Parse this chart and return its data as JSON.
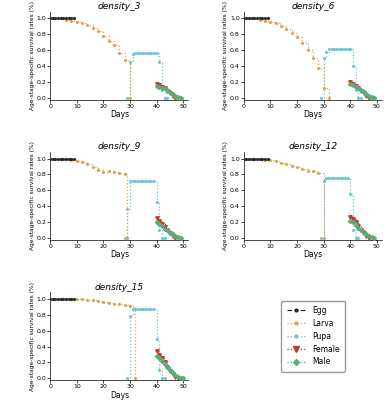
{
  "panels": [
    {
      "title": "density_3",
      "egg": [
        [
          0,
          1,
          2,
          3,
          4,
          5,
          6,
          7,
          8,
          9
        ],
        [
          1.0,
          1.0,
          1.0,
          1.0,
          1.0,
          1.0,
          1.0,
          1.0,
          1.0,
          1.0
        ]
      ],
      "larva": [
        [
          0,
          2,
          4,
          6,
          8,
          10,
          12,
          14,
          16,
          18,
          20,
          22,
          24,
          26,
          28,
          30
        ],
        [
          1.0,
          1.0,
          1.0,
          0.98,
          0.97,
          0.96,
          0.94,
          0.92,
          0.88,
          0.84,
          0.78,
          0.72,
          0.66,
          0.57,
          0.48,
          0.0
        ]
      ],
      "pupa": [
        [
          29,
          30,
          31,
          32,
          33,
          34,
          35,
          36,
          37,
          38,
          39,
          40,
          41,
          42,
          43,
          44
        ],
        [
          0.0,
          0.45,
          0.55,
          0.57,
          0.57,
          0.57,
          0.57,
          0.57,
          0.57,
          0.57,
          0.57,
          0.57,
          0.45,
          0.1,
          0.0,
          0.0
        ]
      ],
      "female": [
        [
          40,
          41,
          42,
          43,
          44,
          45,
          46,
          47
        ],
        [
          0.18,
          0.16,
          0.14,
          0.12,
          0.09,
          0.06,
          0.03,
          0.0
        ]
      ],
      "male": [
        [
          40,
          41,
          42,
          43,
          44,
          45,
          46,
          47,
          48,
          49
        ],
        [
          0.15,
          0.14,
          0.13,
          0.12,
          0.1,
          0.08,
          0.05,
          0.03,
          0.01,
          0.0
        ]
      ]
    },
    {
      "title": "density_6",
      "egg": [
        [
          0,
          1,
          2,
          3,
          4,
          5,
          6,
          7,
          8,
          9
        ],
        [
          1.0,
          1.0,
          1.0,
          1.0,
          1.0,
          1.0,
          1.0,
          1.0,
          1.0,
          1.0
        ]
      ],
      "larva": [
        [
          0,
          2,
          4,
          6,
          8,
          10,
          12,
          14,
          16,
          18,
          20,
          22,
          24,
          26,
          28,
          30,
          32
        ],
        [
          1.0,
          1.0,
          1.0,
          0.98,
          0.97,
          0.96,
          0.94,
          0.91,
          0.87,
          0.82,
          0.76,
          0.69,
          0.6,
          0.5,
          0.38,
          0.12,
          0.0
        ]
      ],
      "pupa": [
        [
          29,
          30,
          31,
          32,
          33,
          34,
          35,
          36,
          37,
          38,
          39,
          40,
          41,
          42,
          43,
          44
        ],
        [
          0.0,
          0.5,
          0.58,
          0.61,
          0.61,
          0.61,
          0.61,
          0.61,
          0.61,
          0.61,
          0.61,
          0.61,
          0.4,
          0.1,
          0.0,
          0.0
        ]
      ],
      "female": [
        [
          40,
          41,
          42,
          43,
          44,
          45,
          46,
          47
        ],
        [
          0.2,
          0.18,
          0.15,
          0.12,
          0.09,
          0.06,
          0.03,
          0.0
        ]
      ],
      "male": [
        [
          40,
          41,
          42,
          43,
          44,
          45,
          46,
          47,
          48,
          49
        ],
        [
          0.18,
          0.16,
          0.14,
          0.12,
          0.1,
          0.08,
          0.05,
          0.03,
          0.01,
          0.0
        ]
      ]
    },
    {
      "title": "density_9",
      "egg": [
        [
          0,
          1,
          2,
          3,
          4,
          5,
          6,
          7,
          8,
          9
        ],
        [
          1.0,
          1.0,
          1.0,
          1.0,
          1.0,
          1.0,
          1.0,
          1.0,
          1.0,
          1.0
        ]
      ],
      "larva": [
        [
          0,
          2,
          4,
          6,
          8,
          10,
          12,
          14,
          16,
          18,
          20,
          22,
          24,
          26,
          28,
          29
        ],
        [
          1.0,
          1.0,
          1.0,
          0.99,
          0.98,
          0.97,
          0.96,
          0.93,
          0.9,
          0.86,
          0.83,
          0.84,
          0.83,
          0.82,
          0.8,
          0.0
        ]
      ],
      "pupa": [
        [
          28,
          29,
          30,
          31,
          32,
          33,
          34,
          35,
          36,
          37,
          38,
          39,
          40,
          41,
          42,
          43
        ],
        [
          0.0,
          0.37,
          0.72,
          0.72,
          0.72,
          0.72,
          0.72,
          0.72,
          0.72,
          0.72,
          0.72,
          0.72,
          0.45,
          0.1,
          0.0,
          0.0
        ]
      ],
      "female": [
        [
          40,
          41,
          42,
          43,
          44,
          45,
          46,
          47
        ],
        [
          0.25,
          0.22,
          0.18,
          0.14,
          0.1,
          0.06,
          0.03,
          0.0
        ]
      ],
      "male": [
        [
          40,
          41,
          42,
          43,
          44,
          45,
          46,
          47,
          48,
          49
        ],
        [
          0.2,
          0.18,
          0.15,
          0.12,
          0.1,
          0.07,
          0.05,
          0.03,
          0.01,
          0.0
        ]
      ]
    },
    {
      "title": "density_12",
      "egg": [
        [
          0,
          1,
          2,
          3,
          4,
          5,
          6,
          7,
          8,
          9
        ],
        [
          1.0,
          1.0,
          1.0,
          1.0,
          1.0,
          1.0,
          1.0,
          1.0,
          1.0,
          1.0
        ]
      ],
      "larva": [
        [
          0,
          2,
          4,
          6,
          8,
          10,
          12,
          14,
          16,
          18,
          20,
          22,
          24,
          26,
          28,
          30
        ],
        [
          1.0,
          1.0,
          1.0,
          0.99,
          0.98,
          0.98,
          0.97,
          0.95,
          0.93,
          0.91,
          0.89,
          0.87,
          0.85,
          0.84,
          0.82,
          0.0
        ]
      ],
      "pupa": [
        [
          29,
          30,
          31,
          32,
          33,
          34,
          35,
          36,
          37,
          38,
          39,
          40,
          41,
          42,
          43
        ],
        [
          0.0,
          0.72,
          0.75,
          0.75,
          0.75,
          0.75,
          0.75,
          0.75,
          0.75,
          0.75,
          0.75,
          0.55,
          0.1,
          0.0,
          0.0
        ]
      ],
      "female": [
        [
          40,
          41,
          42,
          43,
          44,
          45,
          46,
          47
        ],
        [
          0.27,
          0.24,
          0.2,
          0.15,
          0.1,
          0.06,
          0.03,
          0.0
        ]
      ],
      "male": [
        [
          40,
          41,
          42,
          43,
          44,
          45,
          46,
          47,
          48,
          49
        ],
        [
          0.22,
          0.2,
          0.17,
          0.13,
          0.1,
          0.07,
          0.05,
          0.03,
          0.01,
          0.0
        ]
      ]
    },
    {
      "title": "density_15",
      "egg": [
        [
          0,
          1,
          2,
          3,
          4,
          5,
          6,
          7,
          8,
          9
        ],
        [
          1.0,
          1.0,
          1.0,
          1.0,
          1.0,
          1.0,
          1.0,
          1.0,
          1.0,
          1.0
        ]
      ],
      "larva": [
        [
          0,
          2,
          4,
          6,
          8,
          10,
          12,
          14,
          16,
          18,
          20,
          22,
          24,
          26,
          28,
          30,
          32
        ],
        [
          1.0,
          1.0,
          1.0,
          1.0,
          1.0,
          1.0,
          1.0,
          0.99,
          0.98,
          0.97,
          0.96,
          0.95,
          0.94,
          0.93,
          0.92,
          0.91,
          0.0
        ]
      ],
      "pupa": [
        [
          29,
          30,
          31,
          32,
          33,
          34,
          35,
          36,
          37,
          38,
          39,
          40,
          41,
          42,
          43
        ],
        [
          0.0,
          0.78,
          0.87,
          0.87,
          0.87,
          0.87,
          0.87,
          0.87,
          0.87,
          0.87,
          0.87,
          0.5,
          0.1,
          0.0,
          0.0
        ]
      ],
      "female": [
        [
          40,
          41,
          42,
          43,
          44,
          45,
          46,
          47,
          48
        ],
        [
          0.35,
          0.3,
          0.25,
          0.2,
          0.14,
          0.09,
          0.05,
          0.02,
          0.0
        ]
      ],
      "male": [
        [
          40,
          41,
          42,
          43,
          44,
          45,
          46,
          47,
          48,
          49,
          50
        ],
        [
          0.28,
          0.25,
          0.22,
          0.18,
          0.14,
          0.1,
          0.07,
          0.04,
          0.02,
          0.01,
          0.0
        ]
      ]
    }
  ],
  "colors": {
    "egg": "#2a2a2a",
    "larva": "#d4a855",
    "pupa": "#6ec6d0",
    "female": "#c0392b",
    "male": "#5daa7a"
  },
  "xlim": [
    0,
    52
  ],
  "ylim": [
    -0.02,
    1.08
  ],
  "xticks": [
    0,
    10,
    20,
    30,
    40,
    50
  ],
  "yticks": [
    0.0,
    0.2,
    0.4,
    0.6,
    0.8,
    1.0
  ],
  "ylabel": "Age-stage-specific survival rates (%)",
  "xlabel": "Days",
  "legend_labels": [
    "Egg",
    "Larva",
    "Pupa",
    "Female",
    "Male"
  ]
}
